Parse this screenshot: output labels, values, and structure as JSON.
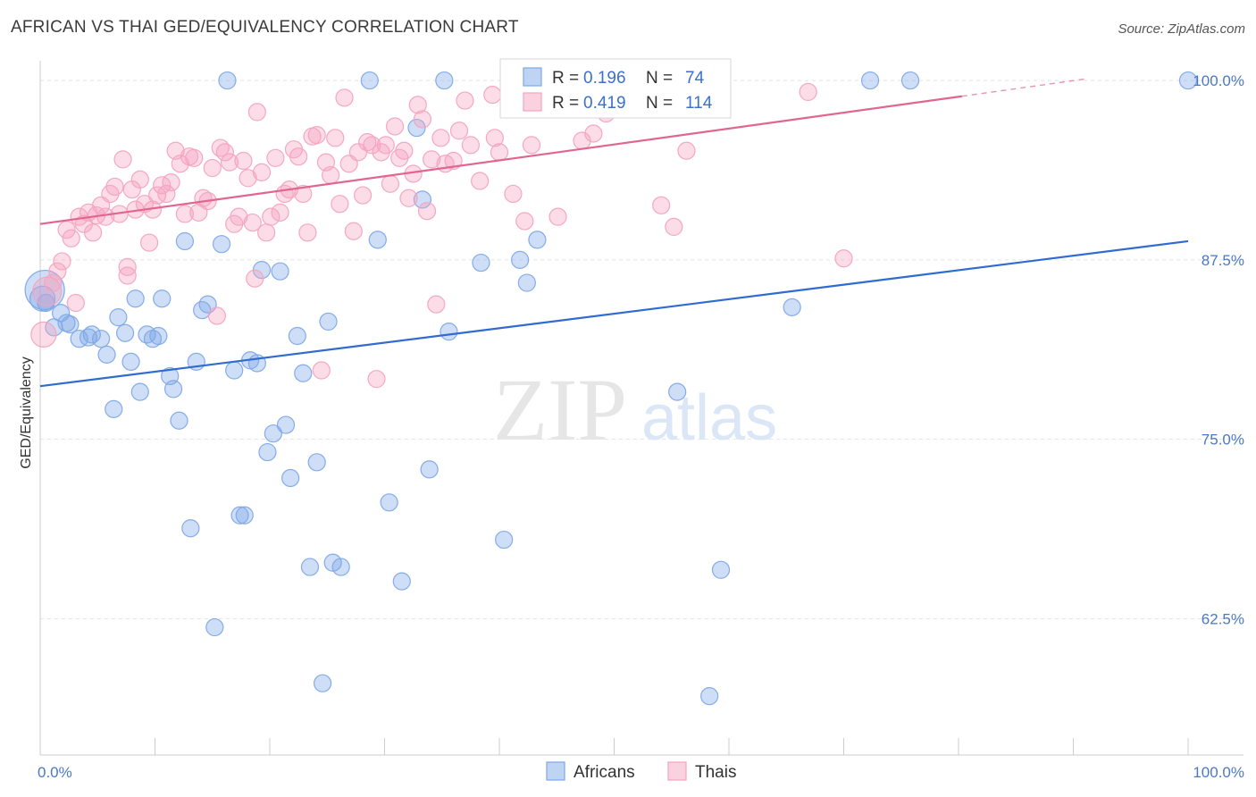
{
  "title": "AFRICAN VS THAI GED/EQUIVALENCY CORRELATION CHART",
  "source": "Source: ZipAtlas.com",
  "watermark": {
    "zip": "ZIP",
    "atlas": "atlas"
  },
  "chart_data": {
    "type": "scatter",
    "ylabel": "GED/Equivalency",
    "xlim": [
      0,
      100
    ],
    "ylim": [
      53,
      101
    ],
    "x_tick_labels": [
      {
        "x": 0,
        "label": "0.0%"
      },
      {
        "x": 100,
        "label": "100.0%"
      }
    ],
    "y_ticks": [
      {
        "y": 100,
        "label": "100.0%"
      },
      {
        "y": 87.5,
        "label": "87.5%"
      },
      {
        "y": 75,
        "label": "75.0%"
      },
      {
        "y": 62.5,
        "label": "62.5%"
      }
    ],
    "x_minor_ticks": [
      0,
      10,
      20,
      30,
      40,
      50,
      60,
      70,
      80,
      90,
      100
    ],
    "grid": true,
    "legend": {
      "placement": "top-center",
      "entries": [
        {
          "r_label": "R =",
          "r_value": "0.196",
          "n_label": "N =",
          "n_value": "74"
        },
        {
          "r_label": "R =",
          "r_value": "0.419",
          "n_label": "N =",
          "n_value": "114"
        }
      ]
    },
    "series": [
      {
        "name": "Africans",
        "color": "#7fa8e8",
        "line_color": "#2f6bd0",
        "trend": {
          "x0": 0,
          "y0": 78.7,
          "x1": 100,
          "y1": 88.8
        },
        "points": [
          [
            0.4,
            85.4
          ],
          [
            0.5,
            84.5
          ],
          [
            1.2,
            82.8
          ],
          [
            1.8,
            83.8
          ],
          [
            2.3,
            83.1
          ],
          [
            2.6,
            83.0
          ],
          [
            3.4,
            82.0
          ],
          [
            4.2,
            82.1
          ],
          [
            4.5,
            82.3
          ],
          [
            5.3,
            82.0
          ],
          [
            5.8,
            80.9
          ],
          [
            6.4,
            77.1
          ],
          [
            6.8,
            83.5
          ],
          [
            7.4,
            82.4
          ],
          [
            7.9,
            80.4
          ],
          [
            8.3,
            84.8
          ],
          [
            8.7,
            78.3
          ],
          [
            9.3,
            82.3
          ],
          [
            9.8,
            82.0
          ],
          [
            10.3,
            82.2
          ],
          [
            10.6,
            84.8
          ],
          [
            11.3,
            79.4
          ],
          [
            11.6,
            78.5
          ],
          [
            12.1,
            76.3
          ],
          [
            12.6,
            88.8
          ],
          [
            13.1,
            68.8
          ],
          [
            13.6,
            80.4
          ],
          [
            14.1,
            84.0
          ],
          [
            14.6,
            84.4
          ],
          [
            15.2,
            61.9
          ],
          [
            15.8,
            88.6
          ],
          [
            16.3,
            100.0
          ],
          [
            16.9,
            79.8
          ],
          [
            17.4,
            69.7
          ],
          [
            17.8,
            69.7
          ],
          [
            18.3,
            80.5
          ],
          [
            18.9,
            80.3
          ],
          [
            19.3,
            86.8
          ],
          [
            19.8,
            74.1
          ],
          [
            20.3,
            75.4
          ],
          [
            20.9,
            86.7
          ],
          [
            21.4,
            76.0
          ],
          [
            21.8,
            72.3
          ],
          [
            22.4,
            82.2
          ],
          [
            22.9,
            79.6
          ],
          [
            23.5,
            66.1
          ],
          [
            24.1,
            73.4
          ],
          [
            24.6,
            58.0
          ],
          [
            25.1,
            83.2
          ],
          [
            25.5,
            66.4
          ],
          [
            26.2,
            66.1
          ],
          [
            28.7,
            100.0
          ],
          [
            29.4,
            88.9
          ],
          [
            30.4,
            70.6
          ],
          [
            31.5,
            65.1
          ],
          [
            32.8,
            96.7
          ],
          [
            33.3,
            91.7
          ],
          [
            33.9,
            72.9
          ],
          [
            35.2,
            100.0
          ],
          [
            35.6,
            82.5
          ],
          [
            38.4,
            87.3
          ],
          [
            40.4,
            68.0
          ],
          [
            41.8,
            87.5
          ],
          [
            42.4,
            85.9
          ],
          [
            43.3,
            88.9
          ],
          [
            52.3,
            100.0
          ],
          [
            55.5,
            78.3
          ],
          [
            58.3,
            57.1
          ],
          [
            59.3,
            65.9
          ],
          [
            65.5,
            84.2
          ],
          [
            72.3,
            100.0
          ],
          [
            75.8,
            100.0
          ],
          [
            100.0,
            100.0
          ],
          [
            0.2,
            84.8
          ]
        ],
        "sizes": [
          2.2,
          1.6
        ]
      },
      {
        "name": "Thais",
        "color": "#f4a3bf",
        "line_color": "#e0668e",
        "trend": {
          "x0": 0,
          "y0": 90.0,
          "x1": 80.3,
          "y1": 98.9
        },
        "trend_dashed": {
          "x0": 80.3,
          "y0": 98.9,
          "x1": 91,
          "y1": 100.1
        },
        "points": [
          [
            0.3,
            82.3
          ],
          [
            0.6,
            85.3
          ],
          [
            1.1,
            85.9
          ],
          [
            1.5,
            86.7
          ],
          [
            1.9,
            87.4
          ],
          [
            2.3,
            89.6
          ],
          [
            2.7,
            89.0
          ],
          [
            3.1,
            84.5
          ],
          [
            3.4,
            90.5
          ],
          [
            3.8,
            90.0
          ],
          [
            4.2,
            90.8
          ],
          [
            4.6,
            89.4
          ],
          [
            4.9,
            90.6
          ],
          [
            5.3,
            91.3
          ],
          [
            5.7,
            90.5
          ],
          [
            6.1,
            92.1
          ],
          [
            6.5,
            92.6
          ],
          [
            6.9,
            90.7
          ],
          [
            7.2,
            94.5
          ],
          [
            7.6,
            86.4
          ],
          [
            8.0,
            92.4
          ],
          [
            8.3,
            91.0
          ],
          [
            8.7,
            93.1
          ],
          [
            9.1,
            91.4
          ],
          [
            9.5,
            88.7
          ],
          [
            9.8,
            91.0
          ],
          [
            10.2,
            92.0
          ],
          [
            10.6,
            92.7
          ],
          [
            11.0,
            92.1
          ],
          [
            11.4,
            92.9
          ],
          [
            11.8,
            95.1
          ],
          [
            12.2,
            94.2
          ],
          [
            12.6,
            90.7
          ],
          [
            13.0,
            94.7
          ],
          [
            13.4,
            94.6
          ],
          [
            13.8,
            90.8
          ],
          [
            14.2,
            91.8
          ],
          [
            14.6,
            91.6
          ],
          [
            15.0,
            93.9
          ],
          [
            15.4,
            83.6
          ],
          [
            15.7,
            95.3
          ],
          [
            16.1,
            95.0
          ],
          [
            16.5,
            94.3
          ],
          [
            16.9,
            90.0
          ],
          [
            17.3,
            90.5
          ],
          [
            17.7,
            94.4
          ],
          [
            18.1,
            93.2
          ],
          [
            18.5,
            90.1
          ],
          [
            18.9,
            97.8
          ],
          [
            19.3,
            93.6
          ],
          [
            19.7,
            89.4
          ],
          [
            20.1,
            90.5
          ],
          [
            20.5,
            94.6
          ],
          [
            20.9,
            90.8
          ],
          [
            21.3,
            92.1
          ],
          [
            21.7,
            92.4
          ],
          [
            22.1,
            95.2
          ],
          [
            22.5,
            94.7
          ],
          [
            22.9,
            92.1
          ],
          [
            23.3,
            89.4
          ],
          [
            23.7,
            96.1
          ],
          [
            24.1,
            96.2
          ],
          [
            24.5,
            79.8
          ],
          [
            24.9,
            94.3
          ],
          [
            25.3,
            93.4
          ],
          [
            25.7,
            96.0
          ],
          [
            26.1,
            91.4
          ],
          [
            26.5,
            98.8
          ],
          [
            26.9,
            94.2
          ],
          [
            27.3,
            89.5
          ],
          [
            27.7,
            95.0
          ],
          [
            28.1,
            92.0
          ],
          [
            28.5,
            95.7
          ],
          [
            28.9,
            95.5
          ],
          [
            29.3,
            79.2
          ],
          [
            29.7,
            95.0
          ],
          [
            30.1,
            95.5
          ],
          [
            30.5,
            92.8
          ],
          [
            30.9,
            96.8
          ],
          [
            31.3,
            94.6
          ],
          [
            31.7,
            95.1
          ],
          [
            32.1,
            91.8
          ],
          [
            32.5,
            93.5
          ],
          [
            32.9,
            98.3
          ],
          [
            33.3,
            97.3
          ],
          [
            33.7,
            90.9
          ],
          [
            34.1,
            94.5
          ],
          [
            34.5,
            84.4
          ],
          [
            34.9,
            96.0
          ],
          [
            35.3,
            94.2
          ],
          [
            36.5,
            96.5
          ],
          [
            37.0,
            98.6
          ],
          [
            37.5,
            95.5
          ],
          [
            38.3,
            93.0
          ],
          [
            39.4,
            99.0
          ],
          [
            39.6,
            96.0
          ],
          [
            40.0,
            95.0
          ],
          [
            41.2,
            92.1
          ],
          [
            42.8,
            95.5
          ],
          [
            44.5,
            98.2
          ],
          [
            45.1,
            90.5
          ],
          [
            47.2,
            95.8
          ],
          [
            49.3,
            97.7
          ],
          [
            50.6,
            98.5
          ],
          [
            54.1,
            91.3
          ],
          [
            55.2,
            89.8
          ],
          [
            70.0,
            87.6
          ],
          [
            18.7,
            86.2
          ],
          [
            7.6,
            87.0
          ],
          [
            36.0,
            94.4
          ],
          [
            42.2,
            90.2
          ],
          [
            48.2,
            96.3
          ],
          [
            56.3,
            95.1
          ],
          [
            66.9,
            99.2
          ]
        ],
        "sizes": [
          2.0,
          1.6
        ]
      }
    ]
  },
  "bottom_legend": [
    {
      "label": "Africans",
      "color": "#7fa8e8"
    },
    {
      "label": "Thais",
      "color": "#f4a3bf"
    }
  ]
}
